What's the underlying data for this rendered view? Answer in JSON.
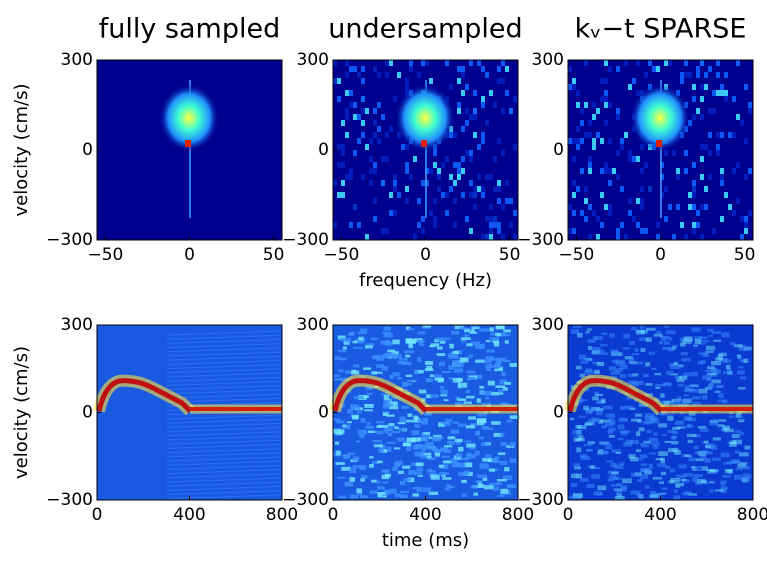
{
  "columns": [
    {
      "title": "fully sampled"
    },
    {
      "title": "undersampled"
    },
    {
      "title": "kᵥ−t SPARSE"
    }
  ],
  "rows": [
    {
      "ylabel": "velocity (cm/s)",
      "xlabel": "frequency (Hz)",
      "xlim": [
        -55,
        55
      ],
      "ylim": [
        -300,
        300
      ],
      "xticks": [
        {
          "value": -50,
          "label": "−50"
        },
        0,
        50
      ],
      "yticks": [
        {
          "value": -300,
          "label": "−300"
        },
        0,
        300
      ]
    },
    {
      "ylabel": "velocity (cm/s)",
      "xlabel": "time (ms)",
      "xlim": [
        0,
        800
      ],
      "ylim": [
        -300,
        300
      ],
      "xticks": [
        0,
        400,
        800
      ],
      "yticks": [
        {
          "value": -300,
          "label": "−300"
        },
        0,
        300
      ]
    }
  ]
}
